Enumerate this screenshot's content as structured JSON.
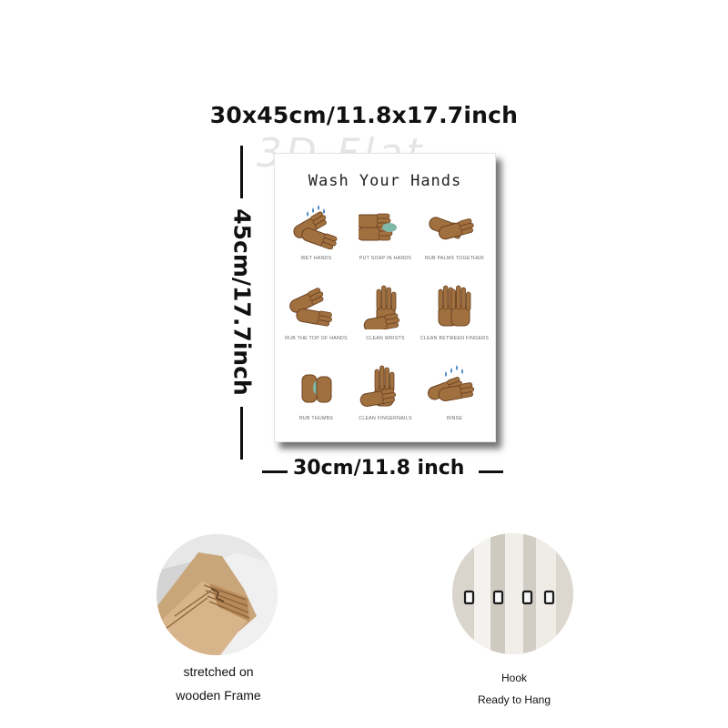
{
  "dimensions": {
    "top": "30x45cm/11.8x17.7inch",
    "side": "45cm/17.7inch",
    "bottom": "30cm/11.8 inch"
  },
  "watermark": "3D Flat",
  "poster": {
    "title": "Wash Your Hands",
    "steps": [
      {
        "label": "WET HANDS",
        "icon": "wet-hands-icon"
      },
      {
        "label": "PUT SOAP IN HANDS",
        "icon": "soap-hands-icon"
      },
      {
        "label": "RUB PALMS TOGETHER",
        "icon": "rub-palms-icon"
      },
      {
        "label": "RUB THE TOP OF HANDS",
        "icon": "rub-top-icon"
      },
      {
        "label": "CLEAN WRISTS",
        "icon": "clean-wrists-icon"
      },
      {
        "label": "CLEAN BETWEEN FINGERS",
        "icon": "between-fingers-icon"
      },
      {
        "label": "RUB THUMBS",
        "icon": "rub-thumbs-icon"
      },
      {
        "label": "CLEAN FINGERNAILS",
        "icon": "fingernails-icon"
      },
      {
        "label": "RINSE",
        "icon": "rinse-icon"
      }
    ]
  },
  "features": [
    {
      "line1": "stretched on",
      "line2": "wooden Frame",
      "icon": "wooden-frame-photo"
    },
    {
      "line1": "Hook",
      "line2": "Ready to Hang",
      "icon": "hook-photo"
    }
  ],
  "colors": {
    "skin": "#a0703f",
    "skin_dark": "#6b4222",
    "soap": "#7fb8a8",
    "water": "#3f82c4"
  }
}
